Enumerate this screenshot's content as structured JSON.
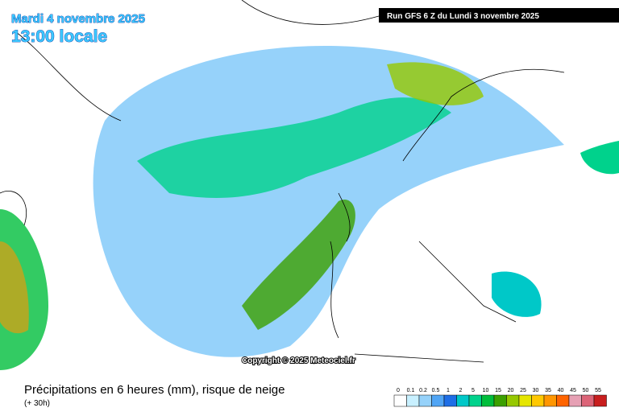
{
  "header": {
    "date": "Mardi 4 novembre 2025",
    "time": "13:00 locale",
    "run": "Run GFS 6 Z du Lundi 3 novembre 2025"
  },
  "map": {
    "copyright": "Copyright © 2025 Meteociel.fr"
  },
  "footer": {
    "title": "Précipitations en 6 heures (mm), risque de neige",
    "lead": "(+ 30h)"
  },
  "legend": {
    "items": [
      {
        "label": 0,
        "color": "#ffffff"
      },
      {
        "label": 0.1,
        "color": "#c8f0ff"
      },
      {
        "label": 0.2,
        "color": "#96d2fa"
      },
      {
        "label": 0.5,
        "color": "#50a5f5"
      },
      {
        "label": 1,
        "color": "#1e6ee6"
      },
      {
        "label": 2,
        "color": "#00c8c8"
      },
      {
        "label": 5,
        "color": "#00d28c"
      },
      {
        "label": 10,
        "color": "#00be3c"
      },
      {
        "label": 15,
        "color": "#3ca000"
      },
      {
        "label": 20,
        "color": "#96c800"
      },
      {
        "label": 25,
        "color": "#e6e600"
      },
      {
        "label": 30,
        "color": "#ffc800"
      },
      {
        "label": 35,
        "color": "#ff9600"
      },
      {
        "label": 40,
        "color": "#ff6400"
      },
      {
        "label": 45,
        "color": "#e6a0b4"
      },
      {
        "label": 50,
        "color": "#dc6478"
      },
      {
        "label": 55,
        "color": "#c81e1e"
      }
    ]
  }
}
